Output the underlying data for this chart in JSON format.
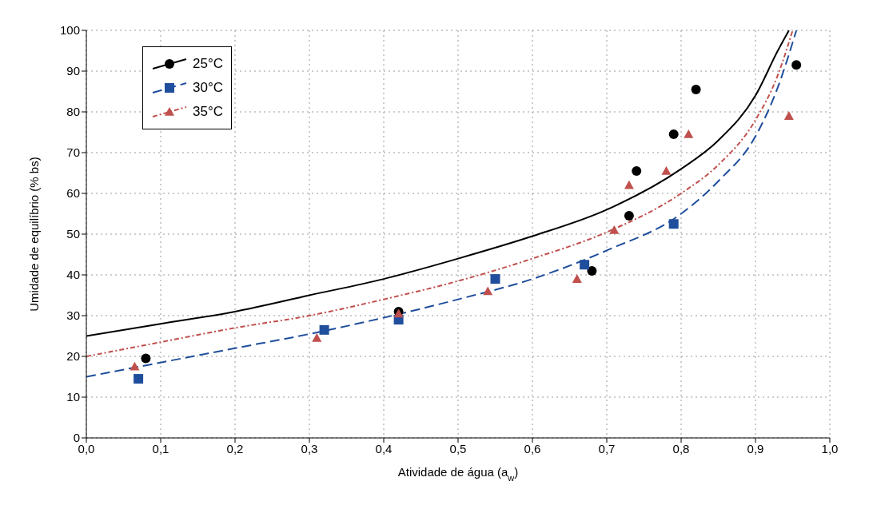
{
  "chart_data": {
    "type": "scatter",
    "xlabel": "Atividade de água (a$_{w}$)",
    "ylabel": "Umidade de equilíbrio (% bs)",
    "xlim": [
      0,
      1
    ],
    "ylim": [
      0,
      100
    ],
    "xticks": [
      {
        "value": 0,
        "label": "0,0"
      },
      {
        "value": 0.1,
        "label": "0,1"
      },
      {
        "value": 0.2,
        "label": "0,2"
      },
      {
        "value": 0.3,
        "label": "0,3"
      },
      {
        "value": 0.4,
        "label": "0,4"
      },
      {
        "value": 0.5,
        "label": "0,5"
      },
      {
        "value": 0.6,
        "label": "0,6"
      },
      {
        "value": 0.7,
        "label": "0,7"
      },
      {
        "value": 0.8,
        "label": "0,8"
      },
      {
        "value": 0.9,
        "label": "0,9"
      },
      {
        "value": 1,
        "label": "1,0"
      }
    ],
    "yticks": [
      0,
      10,
      20,
      30,
      40,
      50,
      60,
      70,
      80,
      90,
      100
    ],
    "grid": true,
    "legend": "top left",
    "series": [
      {
        "name": "25°C",
        "marker": "circle",
        "color": "#000000",
        "x": [
          0.08,
          0.42,
          0.68,
          0.73,
          0.74,
          0.79,
          0.82,
          0.955
        ],
        "values": [
          19.5,
          31,
          41,
          54.5,
          65.5,
          74.5,
          85.5,
          91.5
        ]
      },
      {
        "name": "30°C",
        "marker": "square",
        "color": "#1f4e9c",
        "x": [
          0.07,
          0.32,
          0.42,
          0.55,
          0.67,
          0.79
        ],
        "values": [
          14.5,
          26.5,
          29,
          39,
          42.5,
          52.5
        ]
      },
      {
        "name": "35°C",
        "marker": "triangle",
        "color": "#c0504d",
        "x": [
          0.065,
          0.31,
          0.42,
          0.54,
          0.66,
          0.71,
          0.73,
          0.78,
          0.81,
          0.945
        ],
        "values": [
          17.5,
          24.5,
          30.5,
          36,
          39,
          51,
          62,
          65.5,
          74.5,
          79
        ]
      },
      {
        "type": "line",
        "line_style": "solid",
        "color": "#000000",
        "x": [
          0,
          0.1,
          0.2,
          0.3,
          0.4,
          0.5,
          0.6,
          0.7,
          0.8,
          0.85,
          0.9,
          0.93,
          0.945
        ],
        "values": [
          25,
          28,
          31,
          35,
          39,
          44,
          49.5,
          56,
          66,
          73,
          84,
          95,
          100
        ]
      },
      {
        "type": "line",
        "line_style": "dashed",
        "color": "#1f4e9c",
        "x": [
          0,
          0.1,
          0.2,
          0.3,
          0.4,
          0.5,
          0.6,
          0.7,
          0.8,
          0.85,
          0.9,
          0.93,
          0.955
        ],
        "values": [
          15,
          18.5,
          22,
          25.5,
          29.5,
          34,
          39,
          46,
          55,
          63,
          74,
          86,
          100
        ]
      },
      {
        "type": "line",
        "line_style": "dotted",
        "color": "#c0504d",
        "x": [
          0,
          0.1,
          0.2,
          0.3,
          0.4,
          0.5,
          0.6,
          0.7,
          0.8,
          0.85,
          0.9,
          0.93,
          0.95
        ],
        "values": [
          20,
          23.5,
          27,
          30,
          34,
          38.5,
          44,
          50.5,
          60,
          67,
          78,
          89,
          100
        ]
      }
    ]
  }
}
